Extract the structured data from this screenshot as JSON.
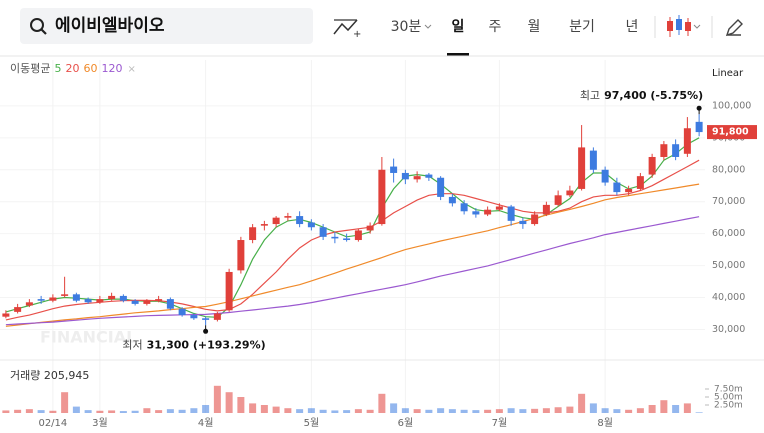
{
  "header": {
    "search": "에이비엘바이오",
    "tabs": [
      "30분",
      "일",
      "주",
      "월",
      "분기",
      "년"
    ],
    "selected": 1
  },
  "chart_data": {
    "type": "candlestick",
    "up_color": "#e0403a",
    "down_color": "#3d7be0",
    "ohlc": {
      "open": [
        34000,
        35500,
        37500,
        39500,
        39000,
        40500,
        41000,
        39500,
        38500,
        39500,
        40500,
        39000,
        38000,
        39000,
        39500,
        36500,
        34500,
        33500,
        33000,
        36000,
        48500,
        58000,
        62500,
        63000,
        65000,
        65500,
        63500,
        62000,
        59000,
        58500,
        58000,
        61000,
        63000,
        81000,
        79000,
        77000,
        78500,
        77500,
        71500,
        69500,
        67000,
        66000,
        67500,
        68500,
        64000,
        63000,
        66000,
        69000,
        72000,
        74000,
        86000,
        80000,
        76000,
        73000,
        74000,
        78500,
        84000,
        88000,
        85000,
        95000
      ],
      "high": [
        36000,
        38000,
        39500,
        40500,
        41000,
        46500,
        41500,
        40000,
        40500,
        41500,
        41000,
        39500,
        39500,
        40500,
        40000,
        37000,
        35000,
        34000,
        35500,
        49000,
        59000,
        63000,
        64000,
        65500,
        66500,
        67000,
        64500,
        63000,
        60500,
        60000,
        61500,
        63500,
        84000,
        83500,
        80000,
        79500,
        79000,
        78000,
        72500,
        70500,
        68000,
        68500,
        69500,
        69000,
        65000,
        67000,
        70000,
        73500,
        75000,
        94000,
        87000,
        81000,
        77500,
        75000,
        79000,
        85000,
        89000,
        89500,
        96500,
        97400
      ],
      "low": [
        33500,
        35000,
        37000,
        38000,
        38500,
        40000,
        38500,
        38000,
        38000,
        39000,
        38500,
        37500,
        37500,
        38500,
        36000,
        34000,
        33000,
        31300,
        32500,
        35500,
        47500,
        57000,
        61000,
        62000,
        64000,
        62000,
        61000,
        58000,
        57000,
        57500,
        57500,
        60000,
        62500,
        76000,
        75500,
        76000,
        76500,
        70500,
        68500,
        66000,
        65000,
        65500,
        67000,
        62500,
        61500,
        62500,
        65500,
        68500,
        71500,
        73500,
        79000,
        75000,
        72000,
        72000,
        73500,
        77500,
        83000,
        83000,
        84000,
        90500
      ],
      "close": [
        35000,
        37000,
        38500,
        39000,
        40000,
        41000,
        39000,
        38500,
        39500,
        40500,
        39000,
        38000,
        39000,
        39500,
        36500,
        34500,
        33500,
        33000,
        35000,
        48000,
        58000,
        62000,
        63000,
        65000,
        65500,
        63000,
        62000,
        59000,
        58500,
        58000,
        61000,
        62500,
        80000,
        79000,
        77000,
        78000,
        77500,
        71500,
        69500,
        67000,
        66000,
        67500,
        68500,
        64000,
        63000,
        66000,
        69000,
        72000,
        73500,
        87000,
        80000,
        76000,
        73000,
        74000,
        78000,
        84000,
        88000,
        84000,
        93000,
        91800
      ]
    },
    "moving_averages": {
      "title": "이동평균",
      "series": [
        {
          "name": "5",
          "color": "#48b04a",
          "values": [
            35500,
            36500,
            37500,
            38500,
            39500,
            40000,
            39800,
            39500,
            39200,
            39500,
            39500,
            39000,
            38800,
            38800,
            38000,
            36500,
            35000,
            34000,
            33800,
            37000,
            44000,
            52000,
            58000,
            62000,
            64000,
            64500,
            63500,
            62000,
            60500,
            59000,
            59500,
            60500,
            68000,
            74000,
            78000,
            78500,
            78000,
            75500,
            72500,
            69500,
            67500,
            67000,
            67200,
            66000,
            65000,
            64500,
            66000,
            68500,
            71000,
            76000,
            79000,
            79000,
            76000,
            74000,
            75000,
            78000,
            83000,
            85000,
            88000,
            90000
          ]
        },
        {
          "name": "20",
          "color": "#e8504a",
          "values": [
            33000,
            33800,
            34500,
            35500,
            36500,
            37300,
            37800,
            38200,
            38500,
            38800,
            39000,
            39100,
            39100,
            39000,
            38600,
            38000,
            37200,
            36300,
            35800,
            36200,
            38000,
            41000,
            44500,
            48000,
            52000,
            55500,
            58000,
            59500,
            60500,
            61000,
            61500,
            62000,
            64000,
            66500,
            68500,
            70500,
            72000,
            72500,
            72500,
            72000,
            71000,
            70000,
            69000,
            68000,
            67000,
            66500,
            66500,
            67000,
            68000,
            70000,
            71500,
            72000,
            72000,
            72500,
            73500,
            75000,
            77000,
            79000,
            81000,
            83000
          ]
        },
        {
          "name": "60",
          "color": "#f08a2a",
          "values": [
            31000,
            31400,
            31800,
            32200,
            32600,
            33000,
            33300,
            33700,
            34000,
            34400,
            34800,
            35200,
            35500,
            35800,
            36200,
            36500,
            36900,
            37200,
            37900,
            38700,
            39600,
            40500,
            41400,
            42300,
            43200,
            44000,
            45200,
            46400,
            47600,
            48900,
            50100,
            51300,
            52500,
            53800,
            55000,
            55900,
            56800,
            57700,
            58500,
            59300,
            60100,
            60900,
            61900,
            62800,
            63800,
            64800,
            65800,
            66700,
            67600,
            68500,
            69500,
            70600,
            71300,
            71900,
            72500,
            73100,
            73700,
            74300,
            74900,
            75500
          ]
        },
        {
          "name": "120",
          "color": "#9b59d0",
          "values": [
            31500,
            31700,
            31900,
            32100,
            32300,
            32600,
            32900,
            33200,
            33500,
            33700,
            33900,
            34100,
            34300,
            34400,
            34500,
            34600,
            34650,
            34700,
            35000,
            35300,
            35700,
            36100,
            36500,
            36900,
            37300,
            37800,
            38400,
            39100,
            39800,
            40500,
            41200,
            41900,
            42600,
            43300,
            44000,
            44900,
            45800,
            46700,
            47500,
            48300,
            49100,
            49900,
            50900,
            51900,
            52900,
            53900,
            54900,
            55900,
            56900,
            57800,
            58700,
            59700,
            60400,
            61100,
            61800,
            62500,
            63200,
            63900,
            64600,
            65300
          ]
        }
      ]
    },
    "xlim": [
      -0.5,
      59.5
    ],
    "xticks": [
      {
        "value": 4,
        "label": "02/14"
      },
      {
        "value": 8,
        "label": "3월"
      },
      {
        "value": 17,
        "label": "4월"
      },
      {
        "value": 26,
        "label": "5월"
      },
      {
        "value": 34,
        "label": "6월"
      },
      {
        "value": 42,
        "label": "7월"
      },
      {
        "value": 51,
        "label": "8월"
      }
    ],
    "ylim": [
      22000,
      105600
    ],
    "yticks": [
      {
        "value": 30000,
        "label": "30,000"
      },
      {
        "value": 40000,
        "label": "40,000"
      },
      {
        "value": 50000,
        "label": "50,000"
      },
      {
        "value": 60000,
        "label": "60,000"
      },
      {
        "value": 70000,
        "label": "70,000"
      },
      {
        "value": 80000,
        "label": "80,000"
      },
      {
        "value": 90000,
        "label": "90,000"
      },
      {
        "value": 100000,
        "label": "100,000"
      }
    ],
    "grid": true,
    "scale": "Linear",
    "last_price_label": "91,800",
    "annotations": {
      "high": {
        "prefix": "최고",
        "text": "97,400 (-5.75%)"
      },
      "low": {
        "prefix": "최저",
        "text": "31,300 (+193.29%)"
      }
    },
    "watermark": "FINANCIAL",
    "volume": {
      "name": "거래량",
      "last_label": "205,945",
      "values": [
        800000,
        1000000,
        1200000,
        900000,
        700000,
        6500000,
        2000000,
        900000,
        700000,
        800000,
        600000,
        700000,
        1500000,
        900000,
        1200000,
        1000000,
        1500000,
        2500000,
        8500000,
        6500000,
        5000000,
        3000000,
        2500000,
        2000000,
        1500000,
        1200000,
        1500000,
        1000000,
        800000,
        900000,
        1200000,
        1000000,
        6000000,
        3000000,
        1500000,
        1200000,
        1000000,
        1500000,
        1200000,
        1000000,
        900000,
        1000000,
        1200000,
        1500000,
        1200000,
        1300000,
        1500000,
        1800000,
        2000000,
        6000000,
        3000000,
        1500000,
        1200000,
        1000000,
        1500000,
        2500000,
        4000000,
        2500000,
        3000000,
        205945
      ],
      "ylim": [
        0,
        15000000
      ],
      "yticks": [
        {
          "value": 2500000,
          "label": "2.50m"
        },
        {
          "value": 5000000,
          "label": "5.00m"
        },
        {
          "value": 7500000,
          "label": "7.50m"
        }
      ]
    }
  }
}
